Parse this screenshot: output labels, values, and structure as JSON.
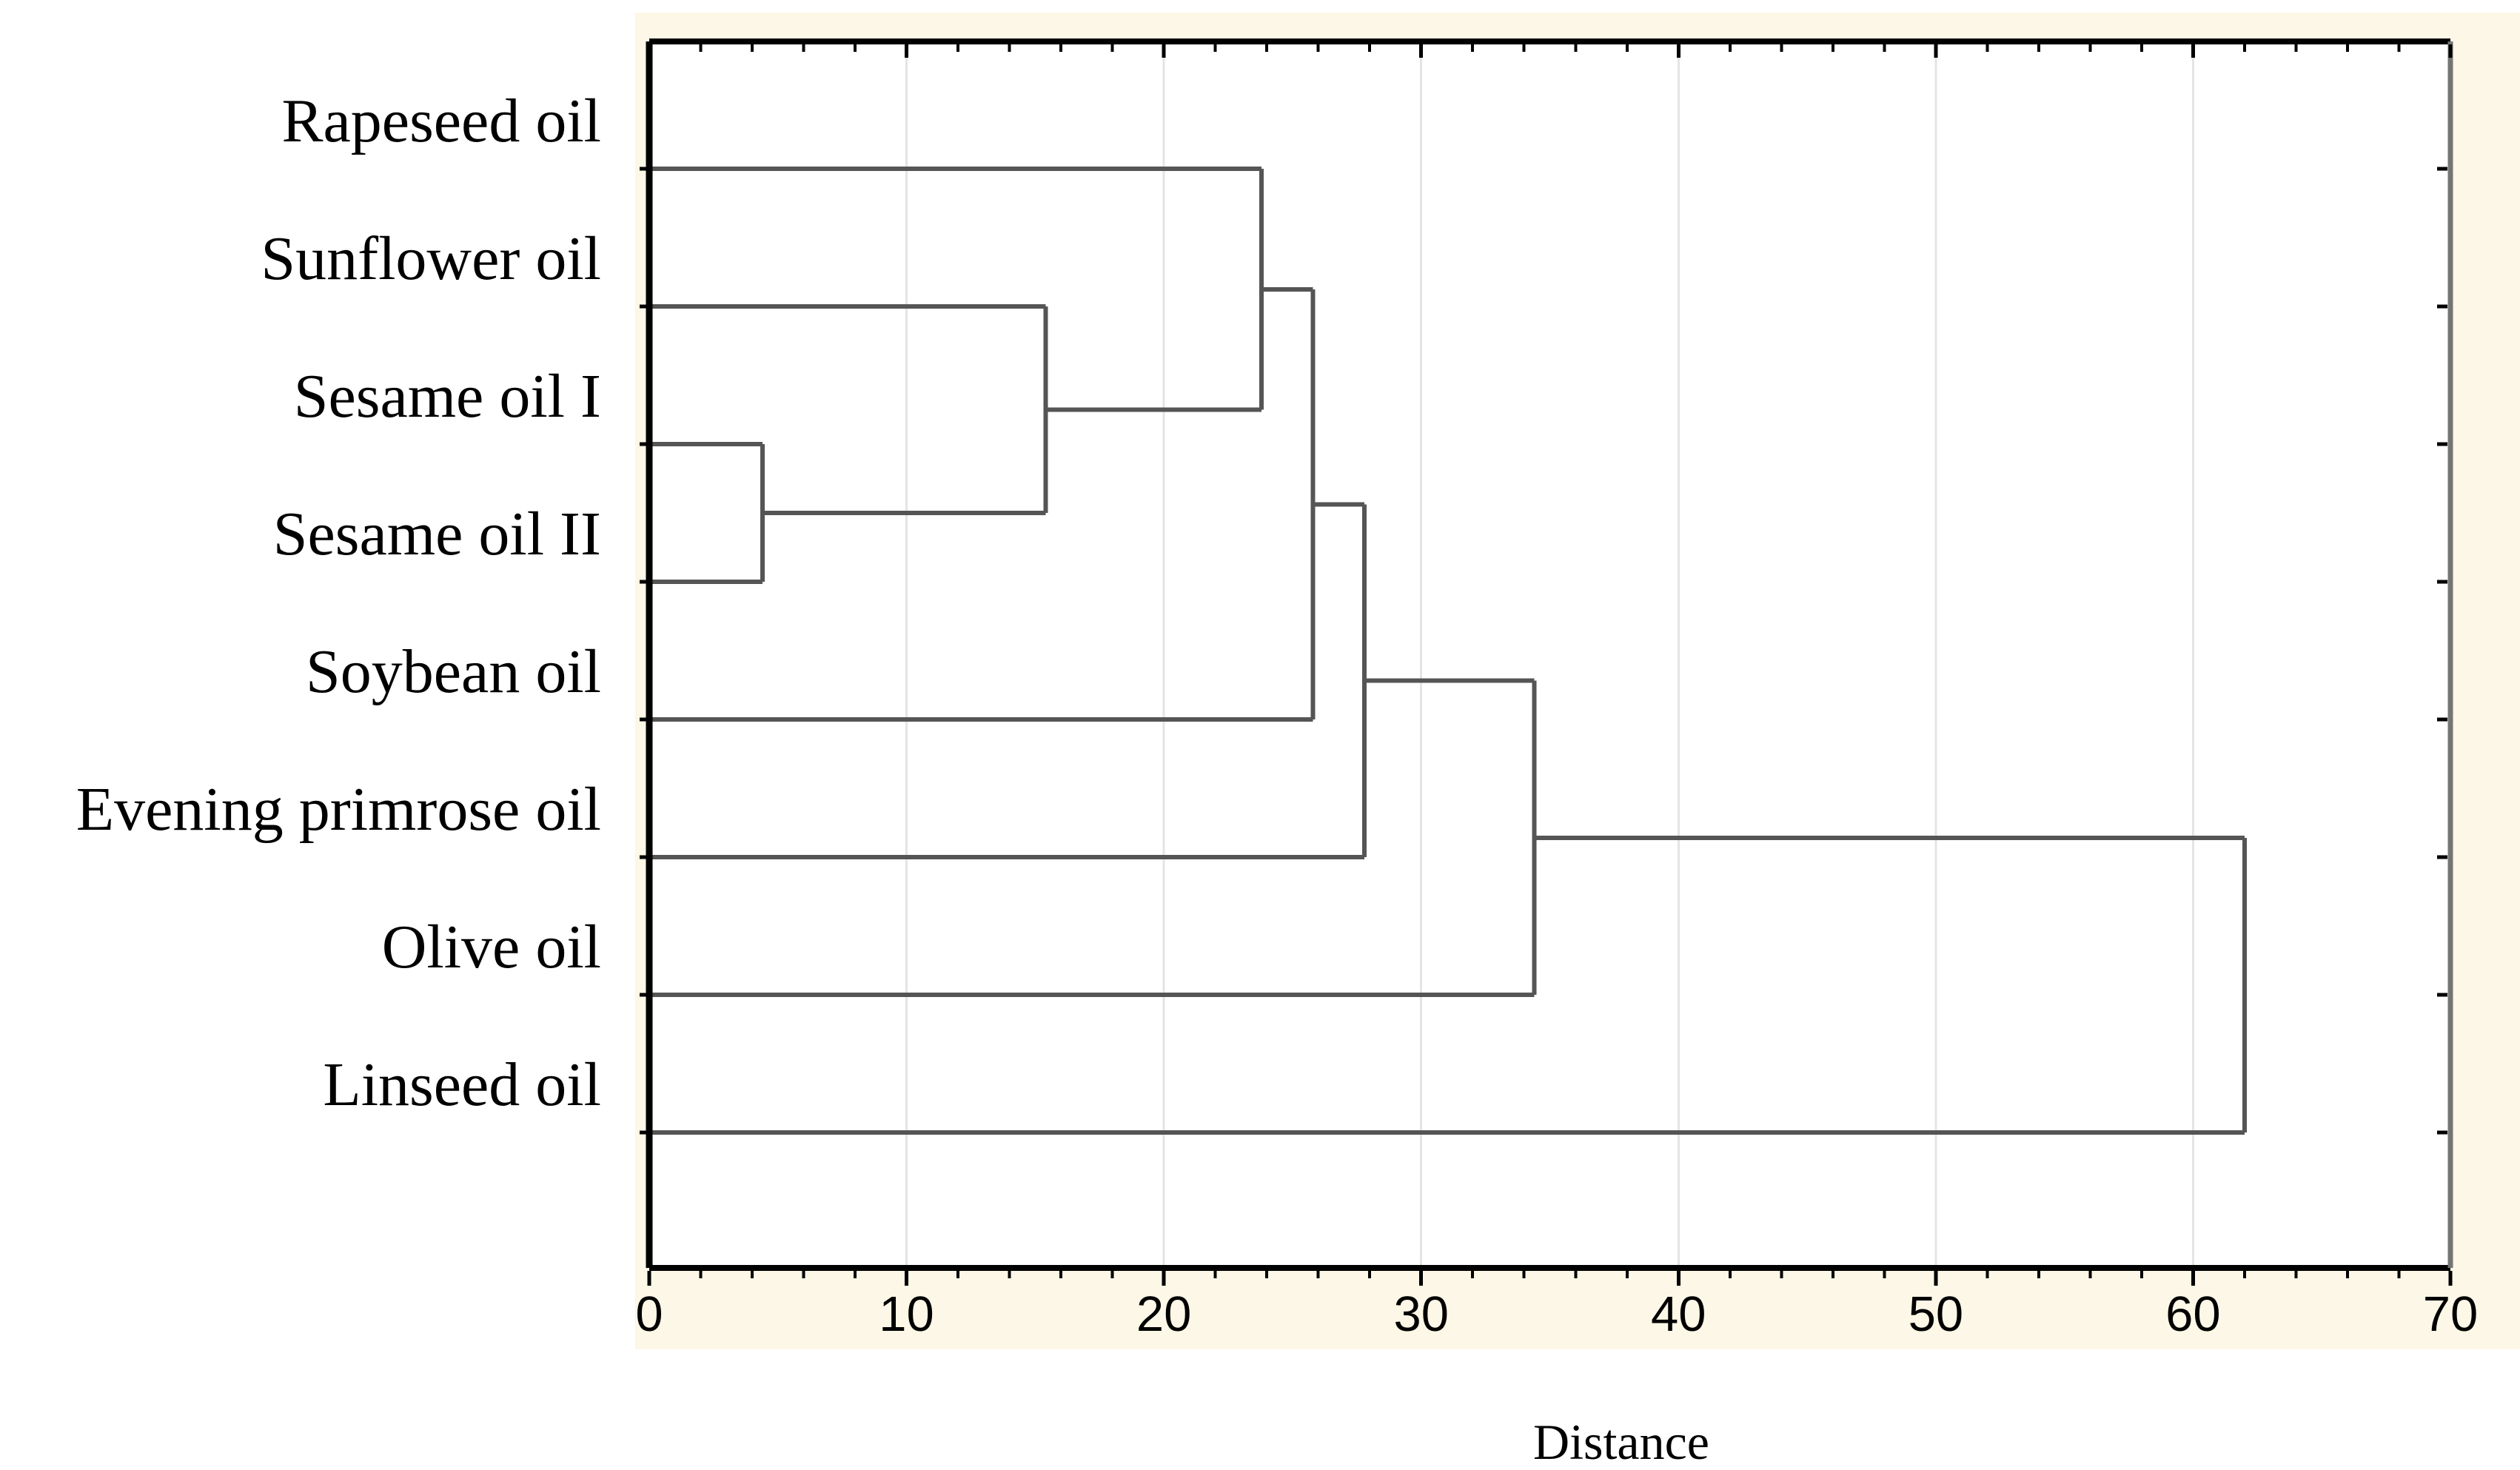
{
  "figure": {
    "page_background": "#FFFFFF",
    "canvas_color": "#FCF7E6",
    "plot_background": "#FFFFFF"
  },
  "chart_data": {
    "type": "dendrogram",
    "orientation": "horizontal",
    "root_side": "right",
    "title": "",
    "xlabel": "Distance",
    "x_axis": {
      "min": 0,
      "max": 70,
      "major_tick_step": 10,
      "minor_tick_step": 2,
      "tick_labels": [
        "0",
        "10",
        "20",
        "30",
        "40",
        "50",
        "60",
        "70"
      ],
      "gridlines_at": [
        10,
        20,
        30,
        40,
        50,
        60
      ],
      "grid_on": true
    },
    "leaves": [
      "Rapeseed oil",
      "Sunflower oil",
      "Sesame oil I",
      "Sesame oil II",
      "Soybean oil",
      "Evening primrose oil",
      "Olive oil",
      "Linseed oil"
    ],
    "merges": [
      {
        "id": "M0",
        "children": [
          "L2",
          "L3"
        ],
        "distance": 4.4
      },
      {
        "id": "M1",
        "children": [
          "L1",
          "M0"
        ],
        "distance": 15.4
      },
      {
        "id": "M2",
        "children": [
          "L0",
          "M1"
        ],
        "distance": 23.8
      },
      {
        "id": "M3",
        "children": [
          "M2",
          "L4"
        ],
        "distance": 25.8
      },
      {
        "id": "M4",
        "children": [
          "M3",
          "L5"
        ],
        "distance": 27.8
      },
      {
        "id": "M5",
        "children": [
          "M4",
          "L6"
        ],
        "distance": 34.4
      },
      {
        "id": "M6",
        "children": [
          "M5",
          "L7"
        ],
        "distance": 62.0
      }
    ],
    "colors": {
      "link": "#555555",
      "axis": "#000000",
      "right_border": "#757575",
      "grid": "#E4E4E4",
      "text": "#000000"
    }
  }
}
